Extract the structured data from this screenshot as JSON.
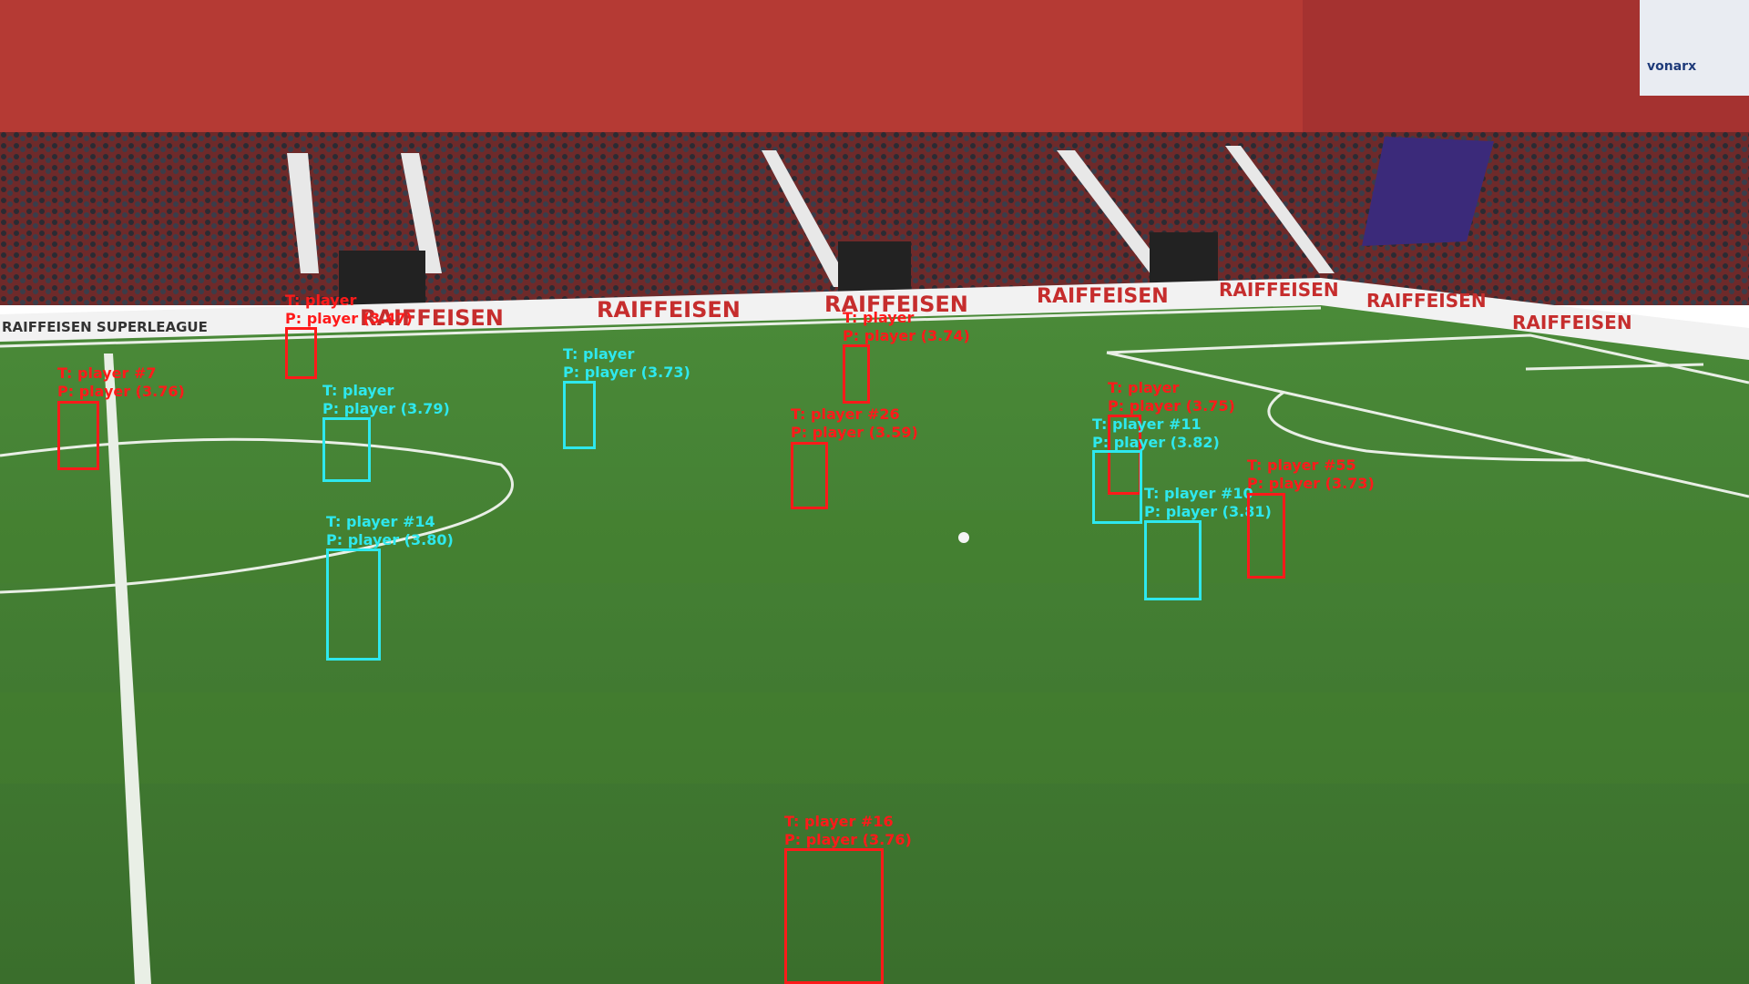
{
  "colors": {
    "sky_wall": "#b83a36",
    "stand_seat": "#8a2a2a",
    "pitch_light": "#4f8a3b",
    "pitch_dark": "#3f7330",
    "line": "#e9efe6",
    "red_box": "#ff1a1a",
    "cyan_box": "#2ee8ee"
  },
  "signage": {
    "league_board": "RAIFFEISEN SUPERLEAGUE",
    "sponsor_1": "RAIFFEISEN",
    "sponsor_2": "RAIFFEISEN",
    "sponsor_3": "RAIFFEISEN",
    "sponsor_4": "RAIFFEISEN",
    "sponsor_5": "RAIFFEISEN",
    "sponsor_6": "RAIFFEISEN",
    "sponsor_7": "RAIFFEISEN",
    "corner_logo": "vonarx"
  },
  "detections": [
    {
      "team": "red",
      "t": "T: player",
      "p": "P: player (3.47)"
    },
    {
      "team": "red",
      "t": "T: player #7",
      "p": "P: player (3.76)"
    },
    {
      "team": "cyan",
      "t": "T: player",
      "p": "P: player (3.79)"
    },
    {
      "team": "cyan",
      "t": "T: player",
      "p": "P: player (3.73)"
    },
    {
      "team": "red",
      "t": "T: player",
      "p": "P: player (3.74)"
    },
    {
      "team": "red",
      "t": "T: player #26",
      "p": "P: player (3.59)"
    },
    {
      "team": "cyan",
      "t": "T: player #14",
      "p": "P: player (3.80)"
    },
    {
      "team": "red",
      "t": "T: player",
      "p": "P: player (3.75)"
    },
    {
      "team": "cyan",
      "t": "T: player #11",
      "p": "P: player (3.82)"
    },
    {
      "team": "cyan",
      "t": "T: player #10",
      "p": "P: player (3.81)"
    },
    {
      "team": "red",
      "t": "T: player #55",
      "p": "P: player (3.73)"
    },
    {
      "team": "red",
      "t": "T: player #16",
      "p": "P: player (3.76)"
    }
  ]
}
